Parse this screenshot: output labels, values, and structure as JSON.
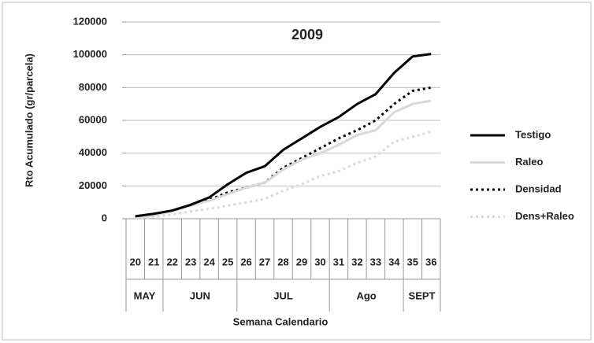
{
  "chart_data": {
    "type": "line",
    "title": "2009",
    "y_label": "Rto Acumulado (gr/parcela)",
    "x_label": "Semana Calendario",
    "categories": [
      "20",
      "21",
      "22",
      "23",
      "24",
      "25",
      "26",
      "27",
      "28",
      "29",
      "30",
      "31",
      "32",
      "33",
      "34",
      "35",
      "36"
    ],
    "groups": [
      {
        "label": "MAY",
        "span": 2
      },
      {
        "label": "JUN",
        "span": 4
      },
      {
        "label": "JUL",
        "span": 5
      },
      {
        "label": "Ago",
        "span": 4
      },
      {
        "label": "SEPT",
        "span": 2
      }
    ],
    "series": [
      {
        "name": "Testigo",
        "color": "#000000",
        "dash": "solid",
        "width": 3,
        "values": [
          1500,
          3000,
          5000,
          8500,
          13000,
          21000,
          28000,
          32000,
          42000,
          49000,
          56000,
          62000,
          70000,
          76000,
          89000,
          99000,
          100500
        ]
      },
      {
        "name": "Raleo",
        "color": "#d9d9d9",
        "dash": "solid",
        "width": 3,
        "values": [
          500,
          2000,
          4500,
          8000,
          11000,
          15000,
          19000,
          22000,
          30000,
          36000,
          40000,
          45000,
          51000,
          54000,
          65000,
          70000,
          72000
        ]
      },
      {
        "name": "Densidad",
        "color": "#000000",
        "dash": "dotted",
        "width": 3,
        "values": [
          1000,
          2000,
          5000,
          8000,
          11500,
          16000,
          19000,
          22000,
          31000,
          37000,
          43000,
          49000,
          54000,
          60000,
          70000,
          78000,
          80000
        ]
      },
      {
        "name": "Dens+Raleo",
        "color": "#d9d9d9",
        "dash": "dotted",
        "width": 3,
        "values": [
          0,
          1000,
          2500,
          4500,
          6000,
          8000,
          10000,
          12000,
          17000,
          21000,
          26000,
          29000,
          34000,
          38000,
          47000,
          50000,
          53000
        ]
      }
    ],
    "ylim": [
      0,
      120000
    ],
    "yticks": [
      0,
      20000,
      40000,
      60000,
      80000,
      100000,
      120000
    ],
    "grid": true,
    "legend": "right"
  }
}
